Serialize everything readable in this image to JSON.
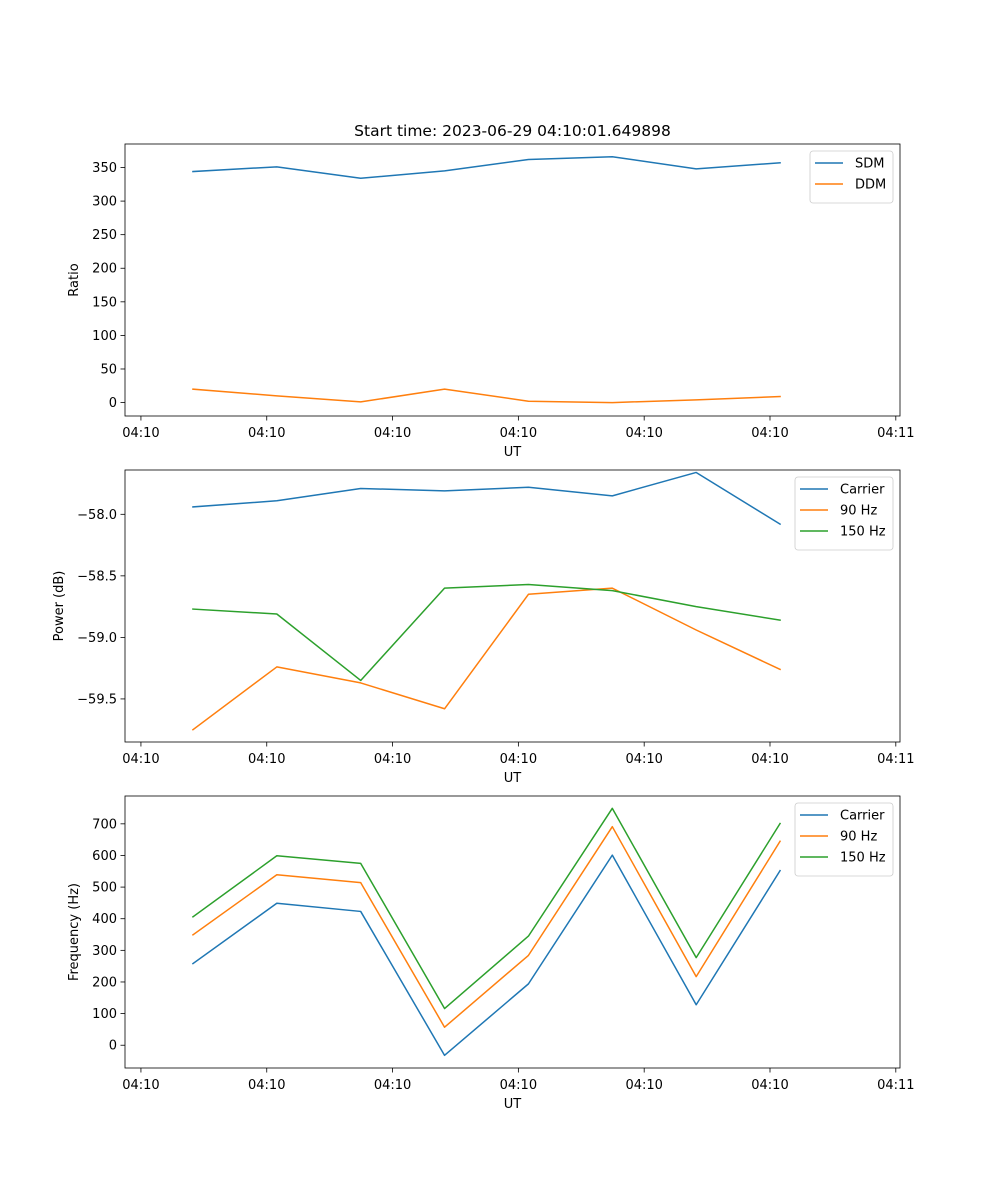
{
  "figure": {
    "title": "Start time: 2023-06-29 04:10:01.649898"
  },
  "colors": {
    "blue": "#1f77b4",
    "orange": "#ff7f0e",
    "green": "#2ca02c"
  },
  "chart_data": [
    {
      "type": "line",
      "title": "Start time: 2023-06-29 04:10:01.649898",
      "xlabel": "UT",
      "ylabel": "Ratio",
      "x": [
        1,
        2,
        3,
        4,
        5,
        6,
        7,
        8
      ],
      "xlim": [
        0.19,
        9.43
      ],
      "xticks": [
        0.38,
        1.88,
        3.38,
        4.88,
        6.38,
        7.88,
        9.38
      ],
      "xtick_labels": [
        "04:10",
        "04:10",
        "04:10",
        "04:10",
        "04:10",
        "04:10",
        "04:11"
      ],
      "ylim": [
        -20,
        385
      ],
      "yticks": [
        0,
        50,
        100,
        150,
        200,
        250,
        300,
        350
      ],
      "series": [
        {
          "name": "SDM",
          "color": "#1f77b4",
          "values": [
            344,
            351,
            334,
            345,
            362,
            366,
            348,
            357
          ]
        },
        {
          "name": "DDM",
          "color": "#ff7f0e",
          "values": [
            20,
            10,
            1,
            20,
            2,
            0,
            4,
            9
          ]
        }
      ],
      "legend": "upper right",
      "grid": false
    },
    {
      "type": "line",
      "xlabel": "UT",
      "ylabel": "Power (dB)",
      "x": [
        1,
        2,
        3,
        4,
        5,
        6,
        7,
        8
      ],
      "xlim": [
        0.19,
        9.43
      ],
      "xticks": [
        0.38,
        1.88,
        3.38,
        4.88,
        6.38,
        7.88,
        9.38
      ],
      "xtick_labels": [
        "04:10",
        "04:10",
        "04:10",
        "04:10",
        "04:10",
        "04:10",
        "04:11"
      ],
      "ylim": [
        -59.85,
        -57.64
      ],
      "yticks": [
        -59.5,
        -59.0,
        -58.5,
        -58.0
      ],
      "ytick_labels": [
        "−59.5",
        "−59.0",
        "−58.5",
        "−58.0"
      ],
      "series": [
        {
          "name": "Carrier",
          "color": "#1f77b4",
          "values": [
            -57.94,
            -57.89,
            -57.79,
            -57.81,
            -57.78,
            -57.85,
            -57.66,
            -58.08
          ]
        },
        {
          "name": "90 Hz",
          "color": "#ff7f0e",
          "values": [
            -59.75,
            -59.24,
            -59.37,
            -59.58,
            -58.65,
            -58.6,
            -58.94,
            -59.26
          ]
        },
        {
          "name": "150 Hz",
          "color": "#2ca02c",
          "values": [
            -58.77,
            -58.81,
            -59.35,
            -58.6,
            -58.57,
            -58.62,
            -58.75,
            -58.86
          ]
        }
      ],
      "legend": "upper right",
      "grid": false
    },
    {
      "type": "line",
      "xlabel": "UT",
      "ylabel": "Frequency (Hz)",
      "x": [
        1,
        2,
        3,
        4,
        5,
        6,
        7,
        8
      ],
      "xlim": [
        0.19,
        9.43
      ],
      "xticks": [
        0.38,
        1.88,
        3.38,
        4.88,
        6.38,
        7.88,
        9.38
      ],
      "xtick_labels": [
        "04:10",
        "04:10",
        "04:10",
        "04:10",
        "04:10",
        "04:10",
        "04:11"
      ],
      "ylim": [
        -72,
        788
      ],
      "yticks": [
        0,
        100,
        200,
        300,
        400,
        500,
        600,
        700
      ],
      "series": [
        {
          "name": "Carrier",
          "color": "#1f77b4",
          "values": [
            258,
            449,
            423,
            -32,
            194,
            601,
            128,
            552
          ]
        },
        {
          "name": "90 Hz",
          "color": "#ff7f0e",
          "values": [
            349,
            539,
            514,
            57,
            284,
            691,
            217,
            645
          ]
        },
        {
          "name": "150 Hz",
          "color": "#2ca02c",
          "values": [
            406,
            599,
            575,
            116,
            345,
            749,
            277,
            701
          ]
        }
      ],
      "legend": "upper right",
      "grid": false
    }
  ]
}
